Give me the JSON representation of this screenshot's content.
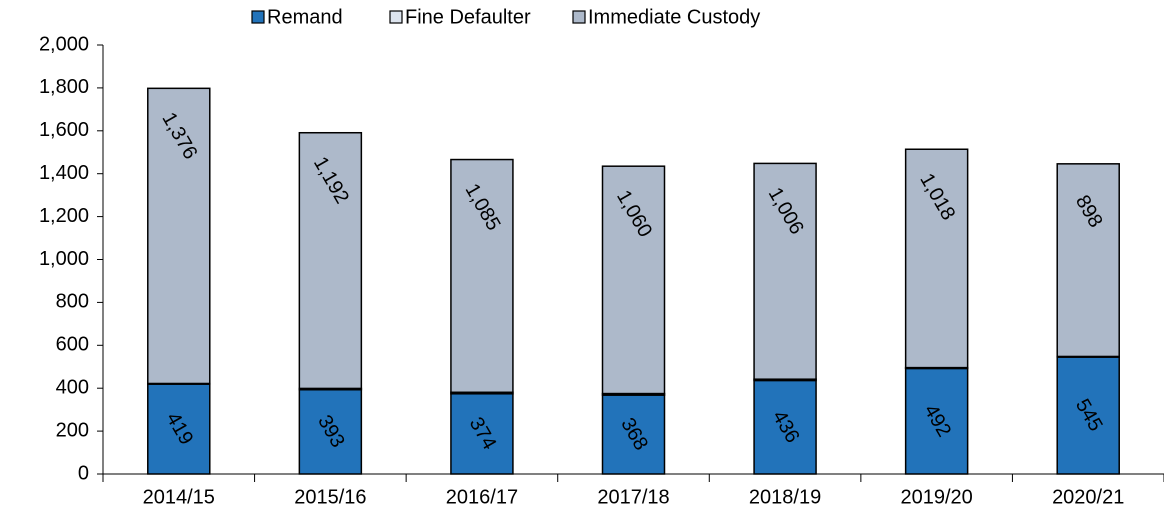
{
  "chart_data": {
    "type": "stacked_bar",
    "categories": [
      "2014/15",
      "2015/16",
      "2016/17",
      "2017/18",
      "2018/19",
      "2019/20",
      "2020/21"
    ],
    "series": [
      {
        "name": "Remand",
        "color": "#2273ba",
        "values": [
          419,
          393,
          374,
          368,
          436,
          492,
          545
        ]
      },
      {
        "name": "Fine Defaulter",
        "color": "#dde4ee",
        "values": [
          3,
          6,
          7,
          7,
          6,
          4,
          3
        ]
      },
      {
        "name": "Immediate Custody",
        "color": "#adb9ca",
        "values": [
          1376,
          1192,
          1085,
          1060,
          1006,
          1018,
          898
        ],
        "value_labels": [
          "1,376",
          "1,192",
          "1,085",
          "1,060",
          "1,006",
          "1,018",
          "898"
        ]
      }
    ],
    "ylim": [
      0,
      2000
    ],
    "yticks": [
      0,
      200,
      400,
      600,
      800,
      {
        "value": 1000,
        "label": "1,000"
      },
      {
        "value": 1200,
        "label": "1,200"
      },
      {
        "value": 1400,
        "label": "1,400"
      },
      {
        "value": 1600,
        "label": "1,600"
      },
      {
        "value": 1800,
        "label": "1,800"
      },
      {
        "value": 2000,
        "label": "2,000"
      }
    ],
    "legend": "top"
  }
}
